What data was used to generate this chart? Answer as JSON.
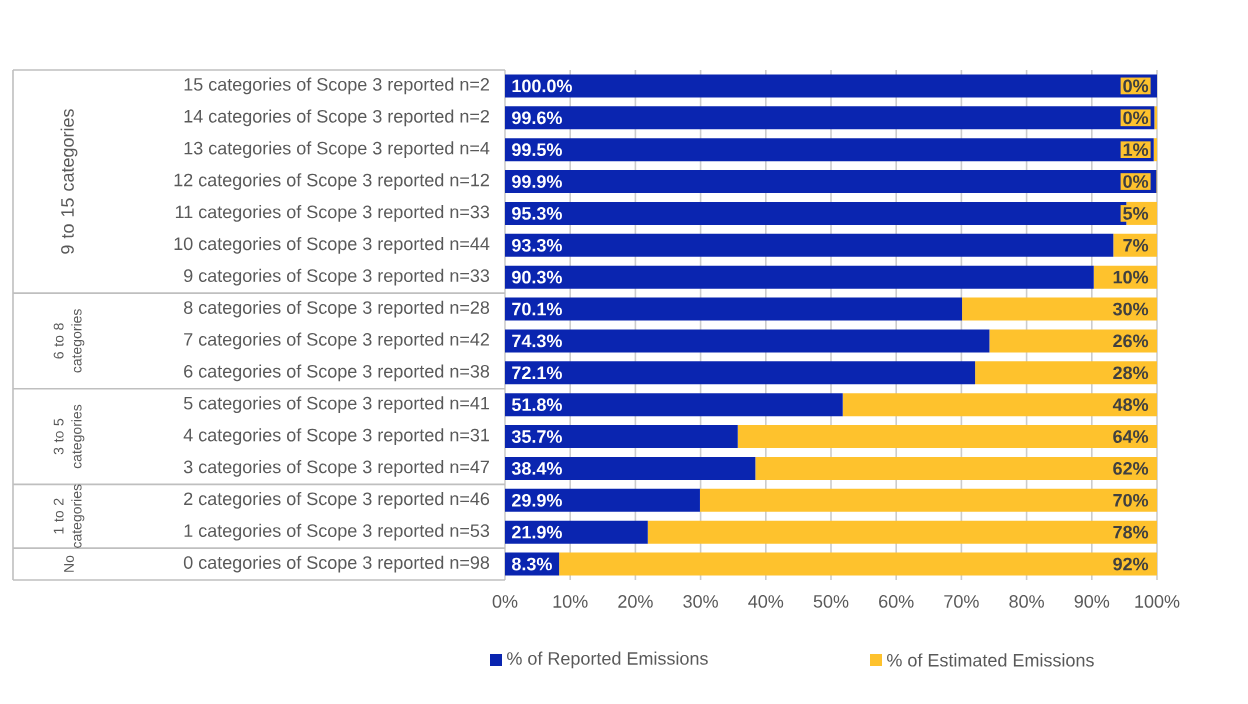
{
  "chart_data": {
    "type": "bar",
    "orientation": "horizontal",
    "stacked": true,
    "categories": [
      "15 categories of Scope 3 reported n=2",
      "14 categories of Scope 3 reported n=2",
      "13 categories of Scope 3 reported n=4",
      "12 categories of Scope 3 reported n=12",
      "11 categories of Scope 3 reported n=33",
      "10 categories of Scope 3 reported n=44",
      "9 categories of Scope 3 reported n=33",
      "8 categories of Scope 3 reported n=28",
      "7 categories of Scope 3 reported n=42",
      "6 categories of Scope 3 reported n=38",
      "5 categories of Scope 3 reported n=41",
      "4 categories of Scope 3 reported n=31",
      "3 categories of Scope 3 reported n=47",
      "2 categories of Scope 3 reported n=46",
      "1 categories of Scope 3 reported n=53",
      "0 categories of Scope 3 reported n=98"
    ],
    "series": [
      {
        "name": "% of Reported Emissions",
        "color": "#0a25b0",
        "values": [
          100.0,
          99.6,
          99.5,
          99.9,
          95.3,
          93.3,
          90.3,
          70.1,
          74.3,
          72.1,
          51.8,
          35.7,
          38.4,
          29.9,
          21.9,
          8.3
        ],
        "value_labels": [
          "100.0%",
          "99.6%",
          "99.5%",
          "99.9%",
          "95.3%",
          "93.3%",
          "90.3%",
          "70.1%",
          "74.3%",
          "72.1%",
          "51.8%",
          "35.7%",
          "38.4%",
          "29.9%",
          "21.9%",
          "8.3%"
        ]
      },
      {
        "name": "% of Estimated Emissions",
        "color": "#fec22d",
        "values": [
          0.0,
          0.4,
          0.5,
          0.1,
          4.7,
          6.7,
          9.7,
          29.9,
          25.7,
          27.9,
          48.2,
          64.3,
          61.6,
          70.1,
          78.1,
          91.7
        ],
        "value_labels": [
          "0%",
          "0%",
          "1%",
          "0%",
          "5%",
          "7%",
          "10%",
          "30%",
          "26%",
          "28%",
          "48%",
          "64%",
          "62%",
          "70%",
          "78%",
          "92%"
        ]
      }
    ],
    "xlim": [
      0,
      100
    ],
    "xticks": [
      {
        "value": 0,
        "label": "0%"
      },
      {
        "value": 10,
        "label": "10%"
      },
      {
        "value": 20,
        "label": "20%"
      },
      {
        "value": 30,
        "label": "30%"
      },
      {
        "value": 40,
        "label": "40%"
      },
      {
        "value": 50,
        "label": "50%"
      },
      {
        "value": 60,
        "label": "60%"
      },
      {
        "value": 70,
        "label": "70%"
      },
      {
        "value": 80,
        "label": "80%"
      },
      {
        "value": 90,
        "label": "90%"
      },
      {
        "value": 100,
        "label": "100%"
      }
    ],
    "grid": "x",
    "legend": "bottom",
    "annotations": [
      "9 to 15 categories",
      "6 to 8 categories",
      "3 to 5 categories",
      "1 to 2 categories",
      "No"
    ]
  }
}
